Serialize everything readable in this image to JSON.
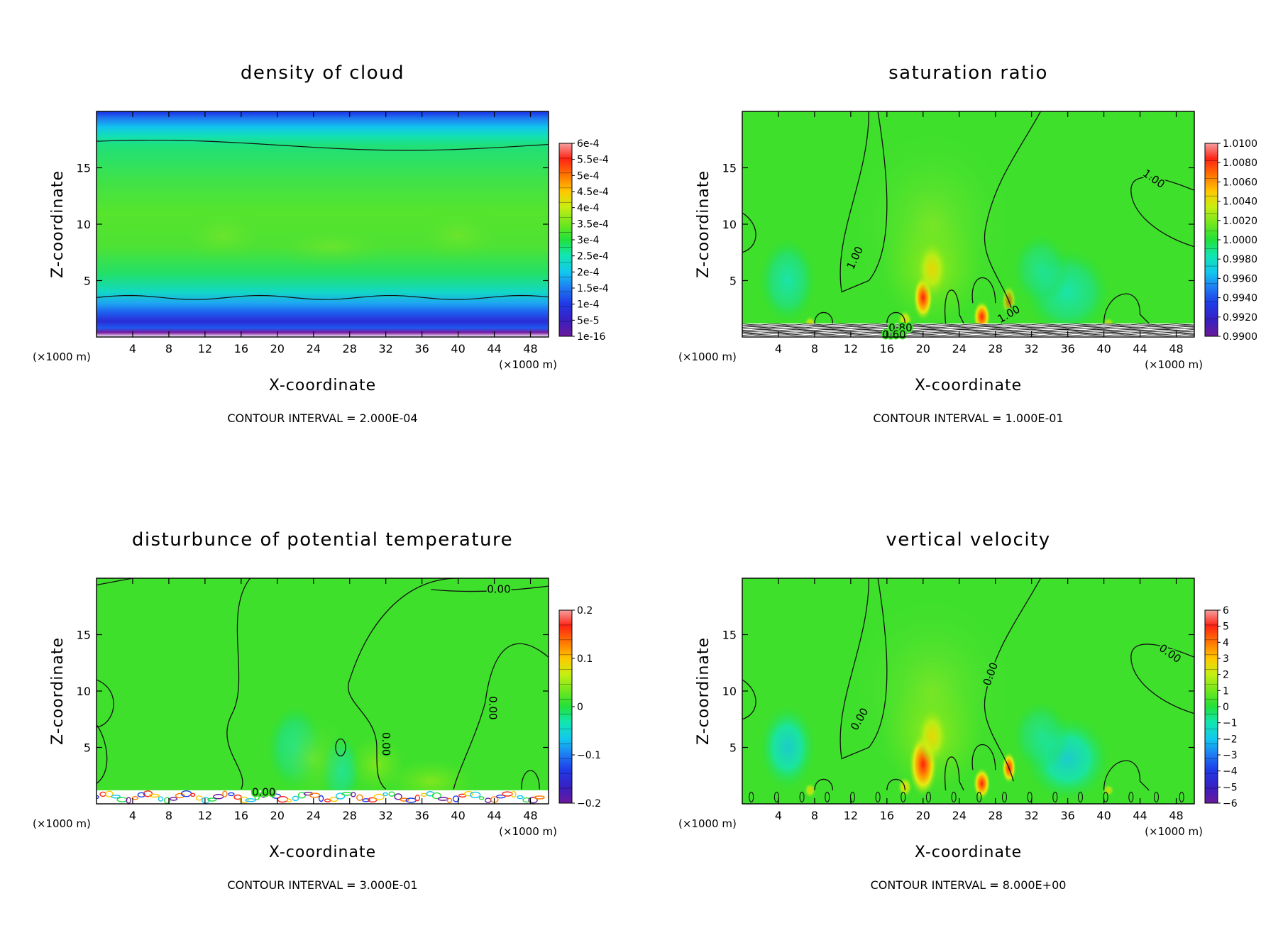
{
  "chart_data": [
    {
      "type": "heatmap",
      "title": "density of cloud",
      "xlabel": "X-coordinate",
      "ylabel": "Z-coordinate",
      "x_unit_left": "(×1000 m)",
      "x_unit_right": "(×1000 m)",
      "xlim": [
        0,
        50
      ],
      "ylim": [
        0,
        20
      ],
      "xticks": [
        4,
        8,
        12,
        16,
        20,
        24,
        28,
        32,
        36,
        40,
        44,
        48
      ],
      "yticks": [
        5,
        10,
        15
      ],
      "footer": "CONTOUR INTERVAL = 2.000E-04",
      "colorbar_labels": [
        "6e-4",
        "5.5e-4",
        "5e-4",
        "4.5e-4",
        "4e-4",
        "3.5e-4",
        "3e-4",
        "2.5e-4",
        "2e-4",
        "1.5e-4",
        "1e-4",
        "5e-5",
        "1e-16"
      ],
      "colorbar_levels": 13,
      "contour_labels": [],
      "pattern": "cloud"
    },
    {
      "type": "heatmap",
      "title": "saturation ratio",
      "xlabel": "X-coordinate",
      "ylabel": "Z-coordinate",
      "x_unit_left": "(×1000 m)",
      "x_unit_right": "(×1000 m)",
      "xlim": [
        0,
        50
      ],
      "ylim": [
        0,
        20
      ],
      "xticks": [
        4,
        8,
        12,
        16,
        20,
        24,
        28,
        32,
        36,
        40,
        44,
        48
      ],
      "yticks": [
        5,
        10,
        15
      ],
      "footer": "CONTOUR INTERVAL = 1.000E-01",
      "colorbar_labels": [
        "1.0100",
        "1.0080",
        "1.0060",
        "1.0040",
        "1.0020",
        "1.0000",
        "0.9980",
        "0.9960",
        "0.9940",
        "0.9920",
        "0.9900"
      ],
      "colorbar_levels": 11,
      "contour_labels": [
        {
          "text": "1.00",
          "x": 45.5,
          "z": 14.0,
          "rot": 35
        },
        {
          "text": "1.00",
          "x": 12.5,
          "z": 7.0,
          "rot": -65
        },
        {
          "text": "1.00",
          "x": 29.5,
          "z": 2.0,
          "rot": -30
        },
        {
          "text": "0.80",
          "x": 17.5,
          "z": 0.8,
          "rot": 0
        },
        {
          "text": "0.60",
          "x": 16.8,
          "z": 0.2,
          "rot": 0
        }
      ],
      "pattern": "updraft"
    },
    {
      "type": "heatmap",
      "title": "disturbunce of potential temperature",
      "xlabel": "X-coordinate",
      "ylabel": "Z-coordinate",
      "x_unit_left": "(×1000 m)",
      "x_unit_right": "(×1000 m)",
      "xlim": [
        0,
        50
      ],
      "ylim": [
        0,
        20
      ],
      "xticks": [
        4,
        8,
        12,
        16,
        20,
        24,
        28,
        32,
        36,
        40,
        44,
        48
      ],
      "yticks": [
        5,
        10,
        15
      ],
      "footer": "CONTOUR INTERVAL = 3.000E-01",
      "colorbar_labels": [
        "0.2",
        "0.1",
        "0",
        "−0.1",
        "−0.2"
      ],
      "colorbar_levels": 13,
      "contour_labels": [
        {
          "text": "0.00",
          "x": 44.5,
          "z": 19.0,
          "rot": 0
        },
        {
          "text": "0.00",
          "x": 43.8,
          "z": 8.5,
          "rot": 90
        },
        {
          "text": "0.00",
          "x": 32.0,
          "z": 5.3,
          "rot": 90
        },
        {
          "text": "0.00",
          "x": 18.5,
          "z": 1.0,
          "rot": 0
        }
      ],
      "pattern": "theta"
    },
    {
      "type": "heatmap",
      "title": "vertical velocity",
      "xlabel": "X-coordinate",
      "ylabel": "Z-coordinate",
      "x_unit_left": "(×1000 m)",
      "x_unit_right": "(×1000 m)",
      "xlim": [
        0,
        50
      ],
      "ylim": [
        0,
        20
      ],
      "xticks": [
        4,
        8,
        12,
        16,
        20,
        24,
        28,
        32,
        36,
        40,
        44,
        48
      ],
      "yticks": [
        5,
        10,
        15
      ],
      "footer": "CONTOUR INTERVAL = 8.000E+00",
      "colorbar_labels": [
        "6",
        "5",
        "4",
        "3",
        "2",
        "1",
        "0",
        "−1",
        "−2",
        "−3",
        "−4",
        "−5",
        "−6"
      ],
      "colorbar_levels": 13,
      "contour_labels": [
        {
          "text": "0.00",
          "x": 47.3,
          "z": 13.3,
          "rot": 35
        },
        {
          "text": "0.00",
          "x": 27.5,
          "z": 11.5,
          "rot": -70
        },
        {
          "text": "0.00",
          "x": 13.0,
          "z": 7.5,
          "rot": -60
        }
      ],
      "pattern": "updraft"
    }
  ]
}
